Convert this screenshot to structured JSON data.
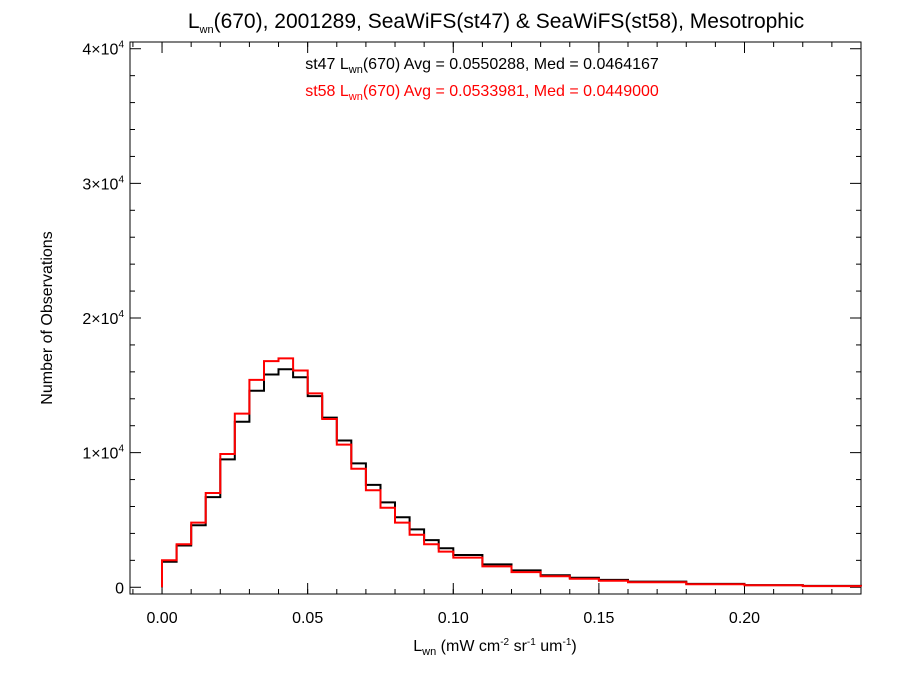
{
  "chart_data": {
    "type": "line",
    "title": {
      "main": "L",
      "sub": "wn",
      "rest": "(670), 2001289, SeaWiFS(st47) & SeaWiFS(st58), Mesotrophic"
    },
    "xlabel": {
      "main": "L",
      "sub": "wn",
      "rest1": " (mW cm",
      "sup1": "-2",
      "rest2": " sr",
      "sup2": "-1",
      "rest3": " um",
      "sup3": "-1",
      "rest4": ")"
    },
    "ylabel": "Number of Observations",
    "xlim": [
      -0.011,
      0.24
    ],
    "ylim": [
      -500,
      40500
    ],
    "x_ticks": [
      {
        "value": 0.0,
        "label": "0.00"
      },
      {
        "value": 0.05,
        "label": "0.05"
      },
      {
        "value": 0.1,
        "label": "0.10"
      },
      {
        "value": 0.15,
        "label": "0.15"
      },
      {
        "value": 0.2,
        "label": "0.20"
      }
    ],
    "y_ticks": [
      {
        "value": 0,
        "label": "0",
        "exp": ""
      },
      {
        "value": 10000,
        "label": "1×10",
        "exp": "4"
      },
      {
        "value": 20000,
        "label": "2×10",
        "exp": "4"
      },
      {
        "value": 30000,
        "label": "3×10",
        "exp": "4"
      },
      {
        "value": 40000,
        "label": "4×10",
        "exp": "4"
      }
    ],
    "annotations": [
      {
        "pre": "st47 L",
        "sub": "wn",
        "post": "(670) Avg = 0.0550288, Med = 0.0464167",
        "color": "#000000"
      },
      {
        "pre": "st58 L",
        "sub": "wn",
        "post": "(670) Avg = 0.0533981, Med = 0.0449000",
        "color": "#ff0000"
      }
    ],
    "grid": false,
    "series": [
      {
        "color": "#000000",
        "x": [
          0.0,
          0.005,
          0.01,
          0.015,
          0.02,
          0.025,
          0.03,
          0.035,
          0.04,
          0.045,
          0.05,
          0.055,
          0.06,
          0.065,
          0.07,
          0.075,
          0.08,
          0.085,
          0.09,
          0.095,
          0.1,
          0.11,
          0.12,
          0.13,
          0.14,
          0.15,
          0.16,
          0.18,
          0.2,
          0.22,
          0.24
        ],
        "y": [
          1900,
          3100,
          4600,
          6700,
          9500,
          12300,
          14600,
          15800,
          16200,
          15600,
          14200,
          12600,
          10900,
          9200,
          7600,
          6300,
          5200,
          4300,
          3500,
          2900,
          2400,
          1700,
          1250,
          900,
          700,
          550,
          420,
          250,
          160,
          100,
          60
        ]
      },
      {
        "color": "#ff0000",
        "x": [
          0.0,
          0.005,
          0.01,
          0.015,
          0.02,
          0.025,
          0.03,
          0.035,
          0.04,
          0.045,
          0.05,
          0.055,
          0.06,
          0.065,
          0.07,
          0.075,
          0.08,
          0.085,
          0.09,
          0.095,
          0.1,
          0.11,
          0.12,
          0.13,
          0.14,
          0.15,
          0.16,
          0.18,
          0.2,
          0.22,
          0.24
        ],
        "y": [
          2000,
          3200,
          4800,
          7000,
          9900,
          12900,
          15400,
          16800,
          17000,
          16100,
          14400,
          12500,
          10600,
          8800,
          7200,
          5900,
          4800,
          3900,
          3200,
          2650,
          2200,
          1550,
          1130,
          820,
          630,
          490,
          380,
          230,
          150,
          90,
          55
        ]
      }
    ]
  }
}
